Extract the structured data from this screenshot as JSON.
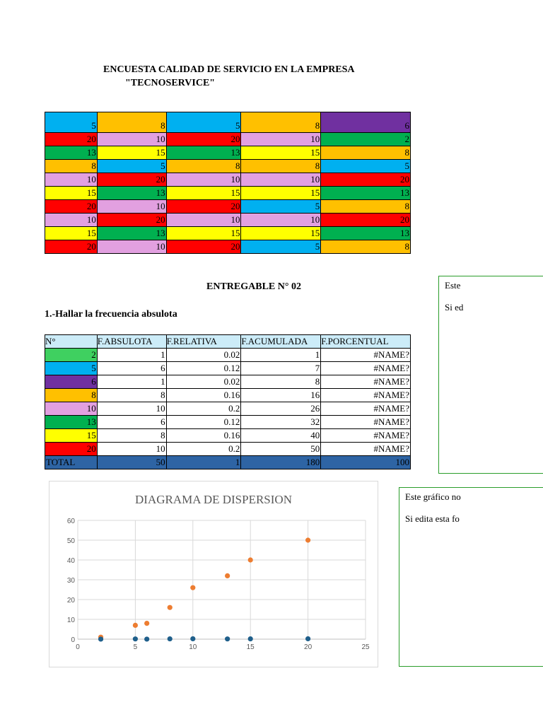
{
  "header": {
    "line1": "ENCUESTA CALIDAD DE SERVICIO EN LA EMPRESA",
    "line2": "\"TECNOSERVICE\""
  },
  "survey_table": {
    "rows": [
      [
        {
          "v": "5",
          "c": "blue"
        },
        {
          "v": "8",
          "c": "orange"
        },
        {
          "v": "5",
          "c": "blue"
        },
        {
          "v": "8",
          "c": "orange"
        },
        {
          "v": "6",
          "c": "purple"
        }
      ],
      [
        {
          "v": "20",
          "c": "red"
        },
        {
          "v": "10",
          "c": "pink"
        },
        {
          "v": "20",
          "c": "red"
        },
        {
          "v": "10",
          "c": "pink"
        },
        {
          "v": "2",
          "c": "green"
        }
      ],
      [
        {
          "v": "13",
          "c": "green"
        },
        {
          "v": "15",
          "c": "yellow"
        },
        {
          "v": "13",
          "c": "green"
        },
        {
          "v": "15",
          "c": "yellow"
        },
        {
          "v": "8",
          "c": "orange"
        }
      ],
      [
        {
          "v": "8",
          "c": "orange"
        },
        {
          "v": "5",
          "c": "blue"
        },
        {
          "v": "8",
          "c": "orange"
        },
        {
          "v": "8",
          "c": "orange"
        },
        {
          "v": "5",
          "c": "blue"
        }
      ],
      [
        {
          "v": "10",
          "c": "pink"
        },
        {
          "v": "20",
          "c": "red"
        },
        {
          "v": "10",
          "c": "pink"
        },
        {
          "v": "10",
          "c": "pink"
        },
        {
          "v": "20",
          "c": "red"
        }
      ],
      [
        {
          "v": "15",
          "c": "yellow"
        },
        {
          "v": "13",
          "c": "green"
        },
        {
          "v": "15",
          "c": "yellow"
        },
        {
          "v": "15",
          "c": "yellow"
        },
        {
          "v": "13",
          "c": "green"
        }
      ],
      [
        {
          "v": "20",
          "c": "red"
        },
        {
          "v": "10",
          "c": "pink"
        },
        {
          "v": "20",
          "c": "red"
        },
        {
          "v": "5",
          "c": "blue"
        },
        {
          "v": "8",
          "c": "orange"
        }
      ],
      [
        {
          "v": "10",
          "c": "pink"
        },
        {
          "v": "20",
          "c": "red"
        },
        {
          "v": "10",
          "c": "pink"
        },
        {
          "v": "10",
          "c": "pink"
        },
        {
          "v": "20",
          "c": "red"
        }
      ],
      [
        {
          "v": "15",
          "c": "yellow"
        },
        {
          "v": "13",
          "c": "green"
        },
        {
          "v": "15",
          "c": "yellow"
        },
        {
          "v": "15",
          "c": "yellow"
        },
        {
          "v": "13",
          "c": "green"
        }
      ],
      [
        {
          "v": "20",
          "c": "red"
        },
        {
          "v": "10",
          "c": "pink"
        },
        {
          "v": "20",
          "c": "red"
        },
        {
          "v": "5",
          "c": "blue"
        },
        {
          "v": "8",
          "c": "orange"
        }
      ]
    ]
  },
  "entregable_title": "ENTREGABLE N° 02",
  "section_title": "1.-Hallar la frecuencia absulota",
  "freq_table": {
    "headers": [
      "N°",
      "F.ABSULOTA",
      "F.RELATIVA",
      "F.ACUMULADA",
      "F.PORCENTUAL"
    ],
    "rows": [
      {
        "n": "2",
        "color": "lgreen",
        "abs": "1",
        "rel": "0.02",
        "acu": "1",
        "pct": "#NAME?"
      },
      {
        "n": "5",
        "color": "blue",
        "abs": "6",
        "rel": "0.12",
        "acu": "7",
        "pct": "#NAME?"
      },
      {
        "n": "6",
        "color": "purple",
        "abs": "1",
        "rel": "0.02",
        "acu": "8",
        "pct": "#NAME?"
      },
      {
        "n": "8",
        "color": "orange",
        "abs": "8",
        "rel": "0.16",
        "acu": "16",
        "pct": "#NAME?"
      },
      {
        "n": "10",
        "color": "pink",
        "abs": "10",
        "rel": "0.2",
        "acu": "26",
        "pct": "#NAME?"
      },
      {
        "n": "13",
        "color": "green",
        "abs": "6",
        "rel": "0.12",
        "acu": "32",
        "pct": "#NAME?"
      },
      {
        "n": "15",
        "color": "yellow",
        "abs": "8",
        "rel": "0.16",
        "acu": "40",
        "pct": "#NAME?"
      },
      {
        "n": "20",
        "color": "red",
        "abs": "10",
        "rel": "0.2",
        "acu": "50",
        "pct": "#NAME?"
      }
    ],
    "total": {
      "label": "TOTAL",
      "abs": "50",
      "rel": "1",
      "acu": "180",
      "pct": "100"
    }
  },
  "note_box_1": {
    "line1": "Este",
    "line2": "Si ed"
  },
  "note_box_2": {
    "line1": "Este gráfico no",
    "line2": "Si edita esta fo"
  },
  "colors": {
    "blue": "#00b0f0",
    "orange": "#ffc000",
    "purple": "#7030a0",
    "red": "#ff0000",
    "pink": "#e2a0e0",
    "green": "#00b050",
    "lgreen": "#3fd060",
    "yellow": "#ffff00",
    "series_orange": "#ed7d31",
    "series_blue": "#1f5f8b"
  },
  "chart_data": {
    "type": "scatter",
    "title": "DIAGRAMA DE DISPERSION",
    "xlim": [
      0,
      25
    ],
    "ylim": [
      0,
      60
    ],
    "xticks": [
      "0",
      "5",
      "10",
      "15",
      "20",
      "25"
    ],
    "yticks": [
      "0",
      "10",
      "20",
      "30",
      "40",
      "50",
      "60"
    ],
    "grid": true,
    "series": [
      {
        "color": "#ed7d31",
        "points": [
          [
            2,
            1
          ],
          [
            5,
            7
          ],
          [
            6,
            8
          ],
          [
            8,
            16
          ],
          [
            10,
            26
          ],
          [
            13,
            32
          ],
          [
            15,
            40
          ],
          [
            20,
            50
          ]
        ]
      },
      {
        "color": "#1f5f8b",
        "points": [
          [
            2,
            0.02
          ],
          [
            5,
            0.12
          ],
          [
            6,
            0.02
          ],
          [
            8,
            0.16
          ],
          [
            10,
            0.2
          ],
          [
            13,
            0.12
          ],
          [
            15,
            0.16
          ],
          [
            20,
            0.2
          ]
        ]
      }
    ]
  }
}
